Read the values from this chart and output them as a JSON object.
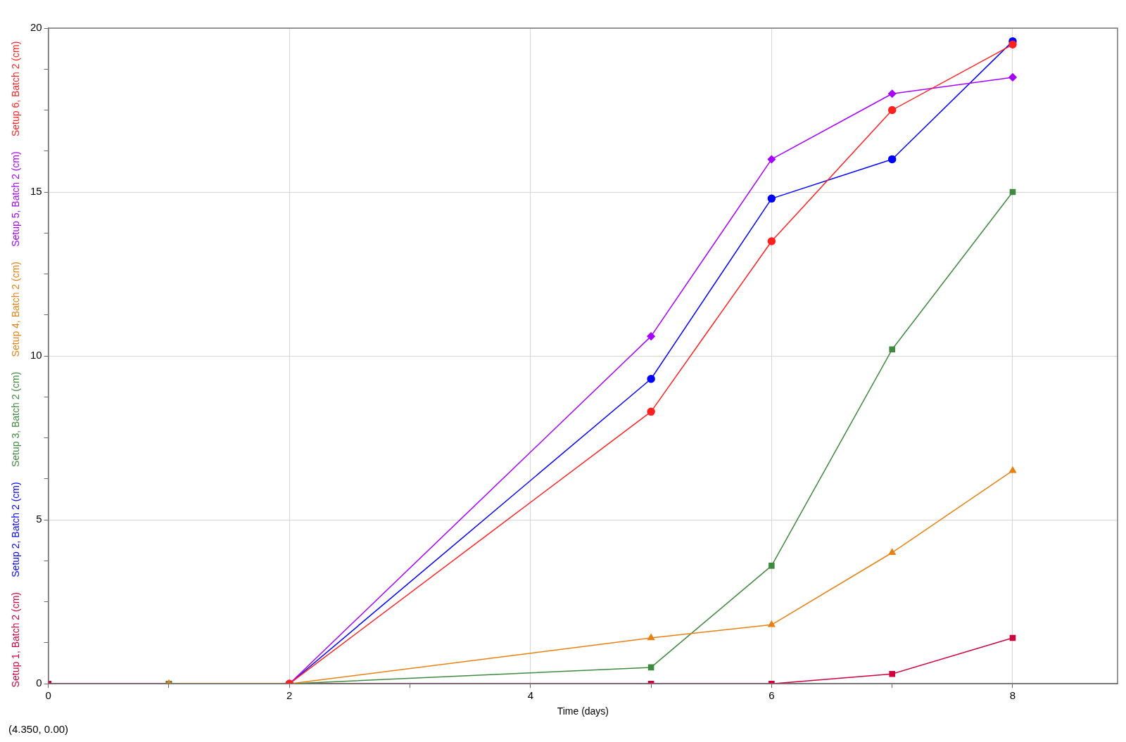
{
  "chart_data": {
    "type": "line",
    "xlabel": "Time (days)",
    "xlim": [
      0,
      8.87
    ],
    "xticks": [
      0,
      {
        "value": 1,
        "label": null
      },
      2,
      {
        "value": 3,
        "label": null
      },
      4,
      {
        "value": 5,
        "label": null
      },
      6,
      {
        "value": 7,
        "label": null
      },
      8
    ],
    "ylim": [
      0,
      20
    ],
    "yticks": [
      0,
      {
        "value": 1.25,
        "label": null
      },
      {
        "value": 2.5,
        "label": null
      },
      {
        "value": 3.75,
        "label": null
      },
      5,
      {
        "value": 6.25,
        "label": null
      },
      {
        "value": 7.5,
        "label": null
      },
      {
        "value": 8.75,
        "label": null
      },
      10,
      {
        "value": 11.25,
        "label": null
      },
      {
        "value": 12.5,
        "label": null
      },
      {
        "value": 13.75,
        "label": null
      },
      15,
      {
        "value": 16.25,
        "label": null
      },
      {
        "value": 17.5,
        "label": null
      },
      {
        "value": 18.75,
        "label": null
      },
      20
    ],
    "grid": true,
    "legend": "left",
    "line_style": "solid",
    "annotations": [
      "(4.350, 0.00)"
    ],
    "series": [
      {
        "name": "Setup 1, Batch 2 (cm)",
        "color": "#d0003c",
        "marker": "square",
        "x": [
          0,
          1,
          2,
          5,
          6,
          7,
          8
        ],
        "values": [
          0,
          0,
          0,
          0,
          0,
          0.3,
          1.4
        ]
      },
      {
        "name": "Setup 2, Batch 2 (cm)",
        "color": "#0000ff",
        "marker": "circle",
        "x": [
          2,
          5,
          6,
          7,
          8
        ],
        "values": [
          0,
          9.3,
          14.8,
          16.0,
          19.6
        ]
      },
      {
        "name": "Setup 3, Batch 2 (cm)",
        "color": "#3f8a3f",
        "marker": "square",
        "x": [
          1,
          2,
          5,
          6,
          7,
          8
        ],
        "values": [
          0,
          0,
          0.5,
          3.6,
          10.2,
          15.0
        ]
      },
      {
        "name": "Setup 4, Batch 2 (cm)",
        "color": "#e88012",
        "marker": "triangle",
        "x": [
          1,
          2,
          5,
          6,
          7,
          8
        ],
        "values": [
          0,
          0,
          1.4,
          1.8,
          4.0,
          6.5
        ]
      },
      {
        "name": "Setup 5, Batch 2 (cm)",
        "color": "#a600ff",
        "marker": "diamond",
        "x": [
          2,
          5,
          6,
          7,
          8
        ],
        "values": [
          0,
          10.6,
          16.0,
          18.0,
          18.5
        ]
      },
      {
        "name": "Setup 6, Batch 2 (cm)",
        "color": "#ff2020",
        "marker": "circle",
        "x": [
          2,
          5,
          6,
          7,
          8
        ],
        "values": [
          0,
          8.3,
          13.5,
          17.5,
          19.5
        ]
      }
    ]
  }
}
